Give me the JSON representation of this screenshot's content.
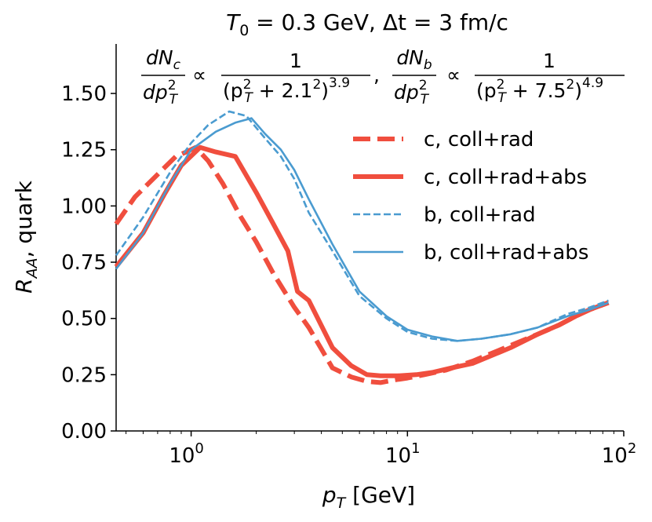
{
  "chart_data": {
    "type": "line",
    "title": "T_0 = 0.3 GeV, Δt = 3 fm/c",
    "title_parts": {
      "T": "T",
      "sub0": "0",
      "rest": " = 0.3 GeV, Δt = 3 fm/c"
    },
    "xlabel": "p_T [GeV]",
    "xlabel_parts": {
      "p": "p",
      "T": "T",
      "unit": " [GeV]"
    },
    "ylabel": "R_AA, quark",
    "ylabel_parts": {
      "R": "R",
      "AA": "AA",
      "rest": ", quark"
    },
    "xscale": "log",
    "xlim": [
      0.45,
      100
    ],
    "ylim": [
      0.0,
      1.72
    ],
    "x_ticks": [
      {
        "value": 1,
        "base": "10",
        "exp": "0"
      },
      {
        "value": 10,
        "base": "10",
        "exp": "1"
      },
      {
        "value": 100,
        "base": "10",
        "exp": "2"
      }
    ],
    "y_ticks": [
      {
        "value": 0.0,
        "label": "0.00"
      },
      {
        "value": 0.25,
        "label": "0.25"
      },
      {
        "value": 0.5,
        "label": "0.50"
      },
      {
        "value": 0.75,
        "label": "0.75"
      },
      {
        "value": 1.0,
        "label": "1.00"
      },
      {
        "value": 1.25,
        "label": "1.25"
      },
      {
        "value": 1.5,
        "label": "1.50"
      }
    ],
    "annotation": {
      "text": "dN_c/dp_T^2 ∝ 1/(p_T^2 + 2.1^2)^3.9 , dN_b/dp_T^2 ∝ 1/(p_T^2 + 7.5^2)^4.9",
      "c": {
        "dN": "dN",
        "sub": "c",
        "dp": "dp",
        "T": "T",
        "sq": "2",
        "prop": "∝",
        "one": "1",
        "open": "(p",
        "plus": " + 2.1",
        "close": ")",
        "exp": "3.9",
        "comma": ","
      },
      "b": {
        "dN": "dN",
        "sub": "b",
        "dp": "dp",
        "T": "T",
        "sq": "2",
        "prop": "∝",
        "one": "1",
        "open": "(p",
        "plus": " + 7.5",
        "close": ")",
        "exp": "4.9"
      }
    },
    "legend_position": "upper right",
    "series": [
      {
        "name": "c, coll+rad",
        "color": "#f04e3e",
        "style": "dashed",
        "weight": "thick",
        "x": [
          0.45,
          0.55,
          0.7,
          0.85,
          0.95,
          1.05,
          1.2,
          1.4,
          1.7,
          2.0,
          2.4,
          3.0,
          3.5,
          4.5,
          5.5,
          6.5,
          7.5,
          8.5,
          10,
          12,
          15,
          20,
          30,
          40,
          50,
          60,
          70,
          85
        ],
        "values": [
          0.92,
          1.04,
          1.14,
          1.22,
          1.24,
          1.26,
          1.2,
          1.1,
          0.95,
          0.84,
          0.7,
          0.55,
          0.46,
          0.28,
          0.24,
          0.22,
          0.215,
          0.225,
          0.235,
          0.25,
          0.27,
          0.31,
          0.38,
          0.43,
          0.47,
          0.51,
          0.54,
          0.57
        ]
      },
      {
        "name": "c, coll+rad+abs",
        "color": "#f04e3e",
        "style": "solid",
        "weight": "thick",
        "x": [
          0.45,
          0.6,
          0.75,
          0.9,
          1.1,
          1.3,
          1.6,
          2.0,
          2.4,
          2.8,
          3.1,
          3.5,
          4.5,
          5.5,
          6.5,
          7.5,
          9,
          11,
          13,
          16,
          20,
          30,
          40,
          50,
          60,
          70,
          85
        ],
        "values": [
          0.73,
          0.88,
          1.05,
          1.18,
          1.26,
          1.24,
          1.22,
          1.06,
          0.92,
          0.8,
          0.62,
          0.58,
          0.37,
          0.29,
          0.25,
          0.245,
          0.245,
          0.25,
          0.26,
          0.28,
          0.3,
          0.37,
          0.43,
          0.47,
          0.51,
          0.54,
          0.57
        ]
      },
      {
        "name": "b, coll+rad",
        "color": "#4a9bd0",
        "style": "dashed",
        "weight": "thin",
        "x": [
          0.45,
          0.6,
          0.8,
          1.0,
          1.2,
          1.5,
          1.8,
          2.2,
          2.6,
          3.0,
          3.5,
          4.5,
          6.0,
          8.0,
          10,
          13,
          17,
          22,
          30,
          40,
          55,
          70,
          85
        ],
        "values": [
          0.78,
          0.95,
          1.15,
          1.28,
          1.36,
          1.42,
          1.4,
          1.3,
          1.22,
          1.12,
          0.97,
          0.8,
          0.6,
          0.5,
          0.44,
          0.41,
          0.4,
          0.41,
          0.43,
          0.46,
          0.52,
          0.55,
          0.58
        ]
      },
      {
        "name": "b, coll+rad+abs",
        "color": "#4a9bd0",
        "style": "solid",
        "weight": "thin",
        "x": [
          0.45,
          0.6,
          0.8,
          1.0,
          1.3,
          1.6,
          1.9,
          2.2,
          2.6,
          3.0,
          3.5,
          4.5,
          6.0,
          8.0,
          10,
          13,
          17,
          22,
          30,
          40,
          55,
          70,
          85
        ],
        "values": [
          0.72,
          0.88,
          1.1,
          1.25,
          1.33,
          1.37,
          1.39,
          1.32,
          1.25,
          1.16,
          1.03,
          0.83,
          0.62,
          0.51,
          0.45,
          0.42,
          0.4,
          0.41,
          0.43,
          0.46,
          0.51,
          0.54,
          0.57
        ]
      }
    ]
  }
}
